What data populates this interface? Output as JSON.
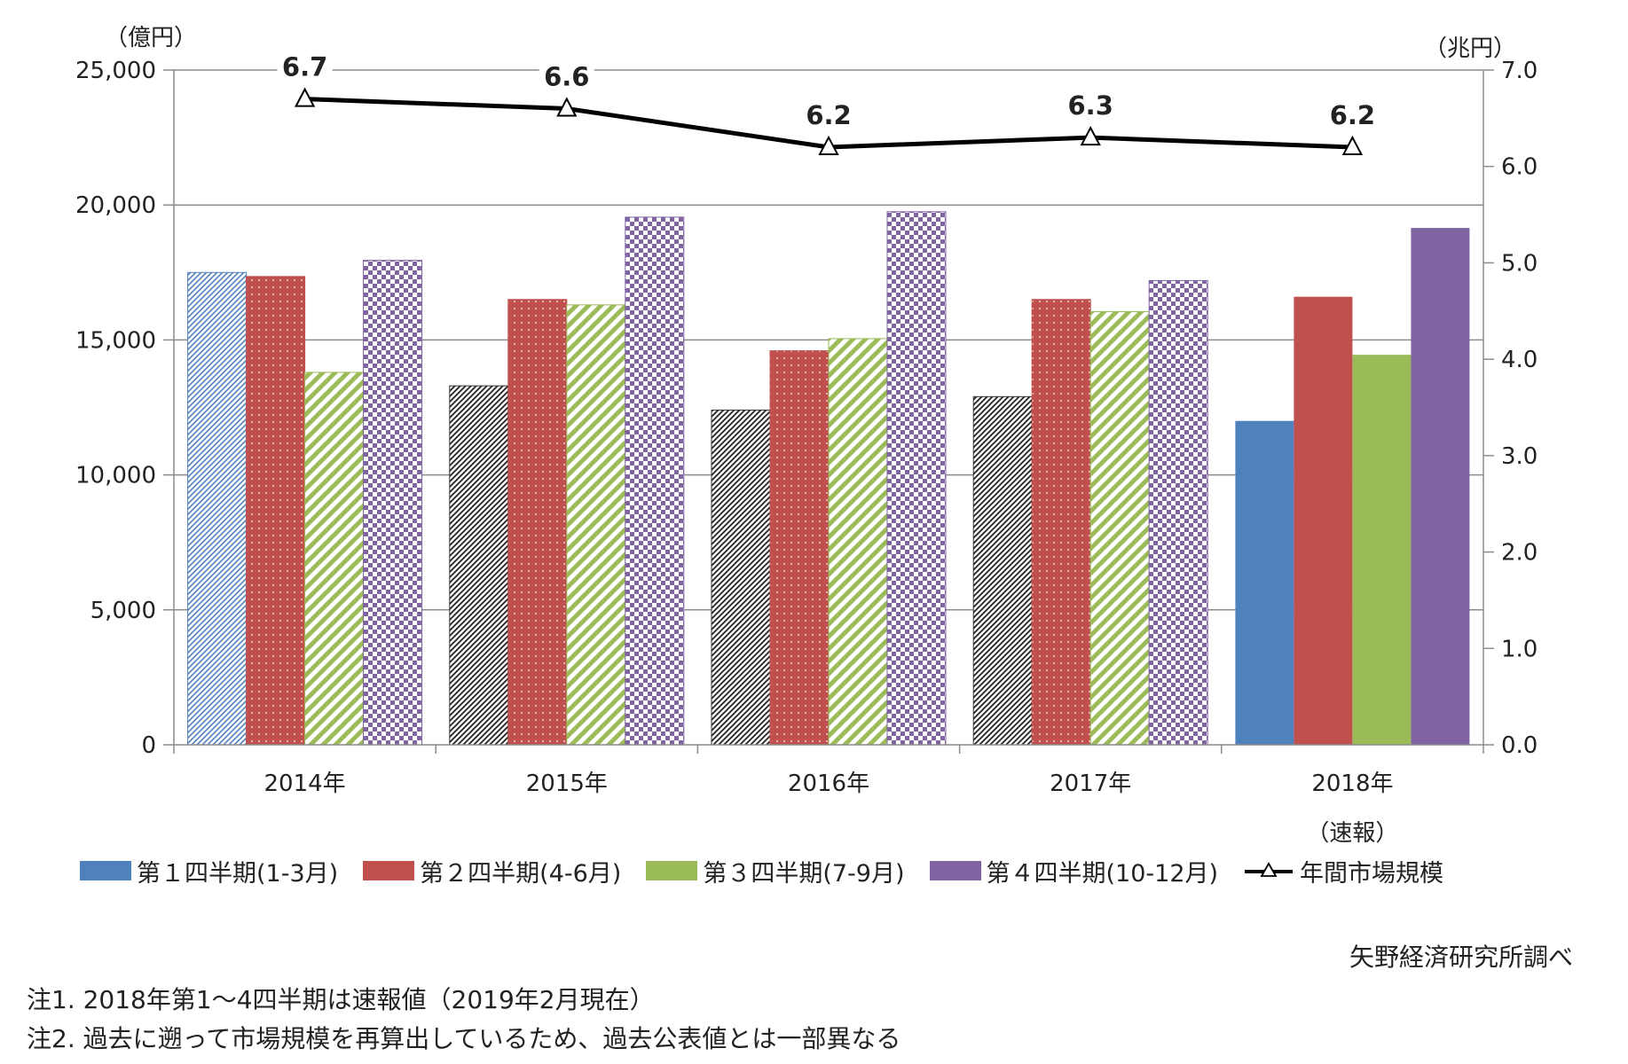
{
  "chart_data": {
    "type": "bar",
    "title": "",
    "left_axis_unit": "（億円）",
    "right_axis_unit": "（兆円）",
    "categories": [
      "2014年",
      "2015年",
      "2016年",
      "2017年",
      "2018年"
    ],
    "category_sublabels": [
      "",
      "",
      "",
      "",
      "（速報）"
    ],
    "left_ylim": [
      0,
      25000
    ],
    "left_ticks": [
      0,
      5000,
      10000,
      15000,
      20000,
      25000
    ],
    "left_tick_labels": [
      "0",
      "5,000",
      "10,000",
      "15,000",
      "20,000",
      "25,000"
    ],
    "right_ylim": [
      0.0,
      7.0
    ],
    "right_ticks": [
      0.0,
      1.0,
      2.0,
      3.0,
      4.0,
      5.0,
      6.0,
      7.0
    ],
    "right_tick_labels": [
      "0.0",
      "1.0",
      "2.0",
      "3.0",
      "4.0",
      "5.0",
      "6.0",
      "7.0"
    ],
    "series": [
      {
        "name": "第１四半期(1-3月)",
        "axis": "left",
        "color": "#4F81BD",
        "values": [
          17500,
          13300,
          12400,
          12900,
          12000
        ]
      },
      {
        "name": "第２四半期(4-6月)",
        "axis": "left",
        "color": "#C0504D",
        "values": [
          17350,
          16500,
          14600,
          16500,
          16600
        ]
      },
      {
        "name": "第３四半期(7-9月)",
        "axis": "left",
        "color": "#9BBB59",
        "values": [
          13800,
          16300,
          15050,
          16050,
          14450
        ]
      },
      {
        "name": "第４四半期(10-12月)",
        "axis": "left",
        "color": "#8064A2",
        "values": [
          17950,
          19550,
          19750,
          17200,
          19150
        ]
      },
      {
        "name": "年間市場規模",
        "axis": "right",
        "type": "line",
        "color": "#000000",
        "values": [
          6.7,
          6.6,
          6.2,
          6.3,
          6.2
        ],
        "labels": [
          "6.7",
          "6.6",
          "6.2",
          "6.3",
          "6.2"
        ]
      }
    ],
    "legend_position": "bottom"
  },
  "source_text": "矢野経済研究所調べ",
  "notes": [
    "注1. 2018年第1～4四半期は速報値（2019年2月現在）",
    "注2. 過去に遡って市場規模を再算出しているため、過去公表値とは一部異なる"
  ]
}
